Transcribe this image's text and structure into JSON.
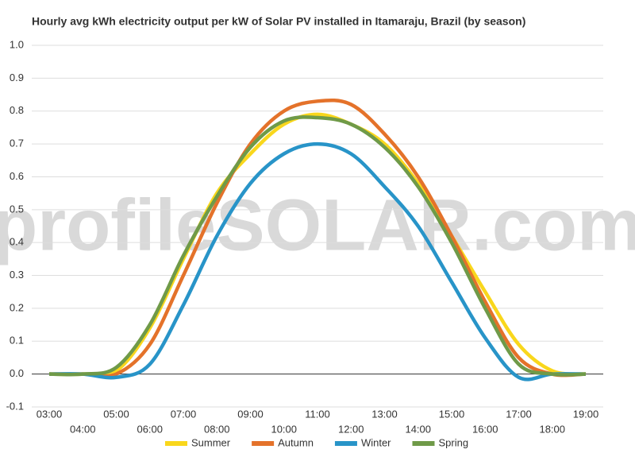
{
  "chart_data": {
    "type": "line",
    "title": "Hourly avg kWh electricity output per kW of Solar PV installed in Itamaraju, Brazil (by season)",
    "watermark": "profileSOLAR.com",
    "categories": [
      "03:00",
      "04:00",
      "05:00",
      "06:00",
      "07:00",
      "08:00",
      "09:00",
      "10:00",
      "11:00",
      "12:00",
      "13:00",
      "14:00",
      "15:00",
      "16:00",
      "17:00",
      "18:00",
      "19:00"
    ],
    "series": [
      {
        "name": "Summer",
        "color": "#f9d71c",
        "values": [
          0,
          0,
          0.01,
          0.14,
          0.35,
          0.55,
          0.67,
          0.76,
          0.79,
          0.76,
          0.7,
          0.58,
          0.42,
          0.25,
          0.09,
          0.01,
          0
        ]
      },
      {
        "name": "Autumn",
        "color": "#e4722a",
        "values": [
          0,
          0,
          0,
          0.09,
          0.3,
          0.52,
          0.7,
          0.8,
          0.83,
          0.82,
          0.73,
          0.6,
          0.42,
          0.22,
          0.05,
          0,
          0
        ]
      },
      {
        "name": "Winter",
        "color": "#2894c8",
        "values": [
          0,
          0,
          -0.01,
          0.03,
          0.21,
          0.42,
          0.58,
          0.67,
          0.7,
          0.67,
          0.57,
          0.45,
          0.28,
          0.11,
          -0.01,
          0,
          0
        ]
      },
      {
        "name": "Spring",
        "color": "#6f9a48",
        "values": [
          0,
          0,
          0.02,
          0.15,
          0.36,
          0.54,
          0.69,
          0.77,
          0.78,
          0.76,
          0.69,
          0.57,
          0.4,
          0.2,
          0.03,
          0,
          0
        ]
      }
    ],
    "ylim": [
      -0.1,
      1.0
    ],
    "yticks": [
      {
        "value": 1.0,
        "label": "1.0"
      },
      0.9,
      0.8,
      0.7,
      0.6,
      0.5,
      0.4,
      0.3,
      0.2,
      0.1,
      {
        "value": 0.0,
        "label": "0.0"
      },
      -0.1
    ],
    "grid": true,
    "legend": "bottom"
  }
}
